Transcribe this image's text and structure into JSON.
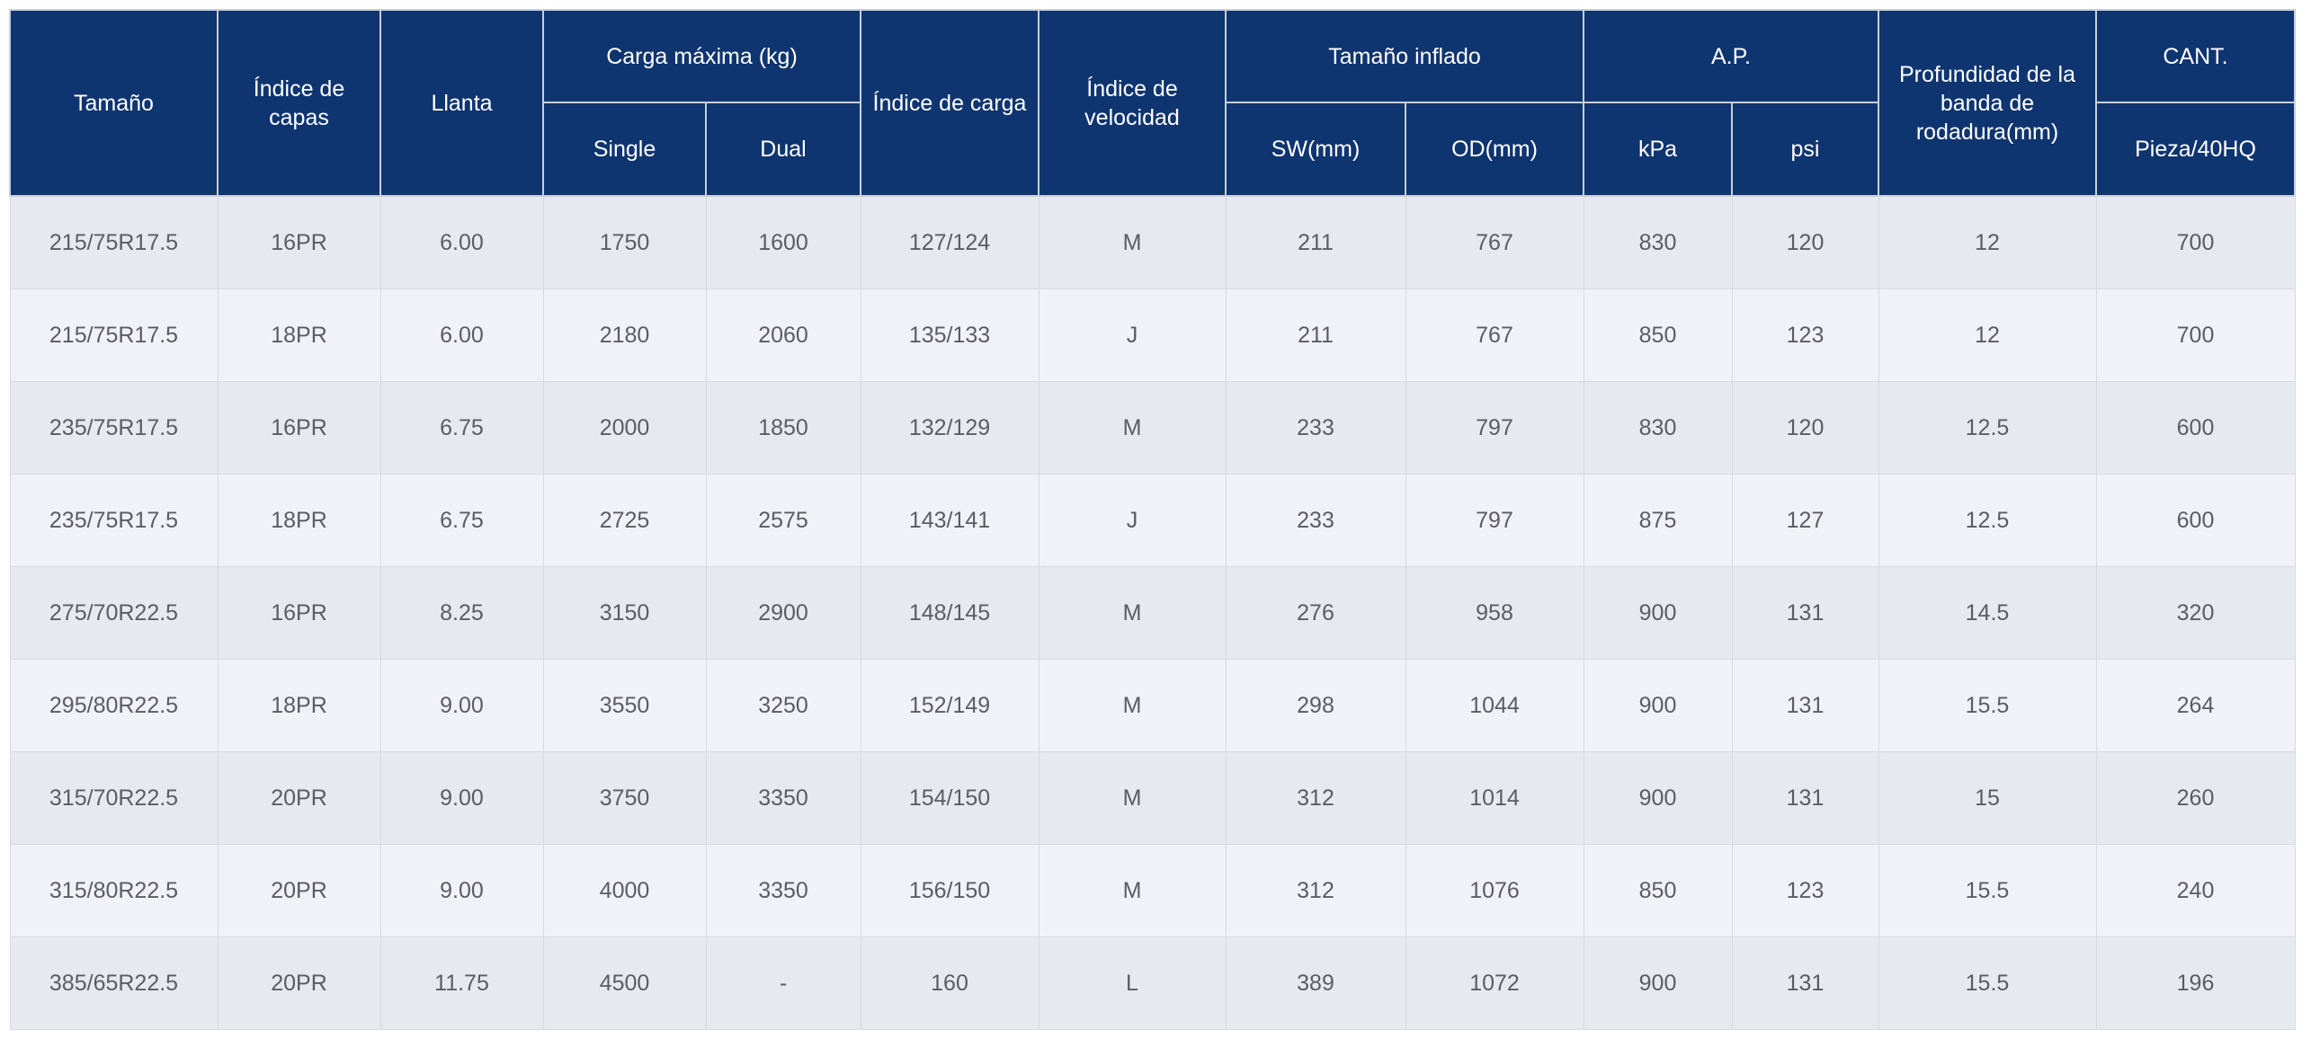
{
  "headers": {
    "size": "Tamaño",
    "ply": "Índice de capas",
    "rim": "Llanta",
    "max_load": "Carga máxima (kg)",
    "single": "Single",
    "dual": "Dual",
    "load_index": "Índice de carga",
    "speed_index": "Índice de velocidad",
    "inflated_size": "Tamaño inflado",
    "sw": "SW(mm)",
    "od": "OD(mm)",
    "ap": "A.P.",
    "kpa": "kPa",
    "psi": "psi",
    "tread_depth": "Profundidad de la banda de rodadura(mm)",
    "qty": "CANT.",
    "qty_unit": "Pieza/40HQ"
  },
  "rows": [
    {
      "size": "215/75R17.5",
      "ply": "16PR",
      "rim": "6.00",
      "single": "1750",
      "dual": "1600",
      "load_index": "127/124",
      "speed": "M",
      "sw": "211",
      "od": "767",
      "kpa": "830",
      "psi": "120",
      "tread": "12",
      "qty": "700"
    },
    {
      "size": "215/75R17.5",
      "ply": "18PR",
      "rim": "6.00",
      "single": "2180",
      "dual": "2060",
      "load_index": "135/133",
      "speed": "J",
      "sw": "211",
      "od": "767",
      "kpa": "850",
      "psi": "123",
      "tread": "12",
      "qty": "700"
    },
    {
      "size": "235/75R17.5",
      "ply": "16PR",
      "rim": "6.75",
      "single": "2000",
      "dual": "1850",
      "load_index": "132/129",
      "speed": "M",
      "sw": "233",
      "od": "797",
      "kpa": "830",
      "psi": "120",
      "tread": "12.5",
      "qty": "600"
    },
    {
      "size": "235/75R17.5",
      "ply": "18PR",
      "rim": "6.75",
      "single": "2725",
      "dual": "2575",
      "load_index": "143/141",
      "speed": "J",
      "sw": "233",
      "od": "797",
      "kpa": "875",
      "psi": "127",
      "tread": "12.5",
      "qty": "600"
    },
    {
      "size": "275/70R22.5",
      "ply": "16PR",
      "rim": "8.25",
      "single": "3150",
      "dual": "2900",
      "load_index": "148/145",
      "speed": "M",
      "sw": "276",
      "od": "958",
      "kpa": "900",
      "psi": "131",
      "tread": "14.5",
      "qty": "320"
    },
    {
      "size": "295/80R22.5",
      "ply": "18PR",
      "rim": "9.00",
      "single": "3550",
      "dual": "3250",
      "load_index": "152/149",
      "speed": "M",
      "sw": "298",
      "od": "1044",
      "kpa": "900",
      "psi": "131",
      "tread": "15.5",
      "qty": "264"
    },
    {
      "size": "315/70R22.5",
      "ply": "20PR",
      "rim": "9.00",
      "single": "3750",
      "dual": "3350",
      "load_index": "154/150",
      "speed": "M",
      "sw": "312",
      "od": "1014",
      "kpa": "900",
      "psi": "131",
      "tread": "15",
      "qty": "260"
    },
    {
      "size": "315/80R22.5",
      "ply": "20PR",
      "rim": "9.00",
      "single": "4000",
      "dual": "3350",
      "load_index": "156/150",
      "speed": "M",
      "sw": "312",
      "od": "1076",
      "kpa": "850",
      "psi": "123",
      "tread": "15.5",
      "qty": "240"
    },
    {
      "size": "385/65R22.5",
      "ply": "20PR",
      "rim": "11.75",
      "single": "4500",
      "dual": "-",
      "load_index": "160",
      "speed": "L",
      "sw": "389",
      "od": "1072",
      "kpa": "900",
      "psi": "131",
      "tread": "15.5",
      "qty": "196"
    }
  ],
  "colors": {
    "header_bg": "#0f3570",
    "header_text": "#ffffff",
    "row_odd": "#e6e9f0",
    "row_even": "#f1f2f7",
    "cell_text": "#5a5d63"
  }
}
